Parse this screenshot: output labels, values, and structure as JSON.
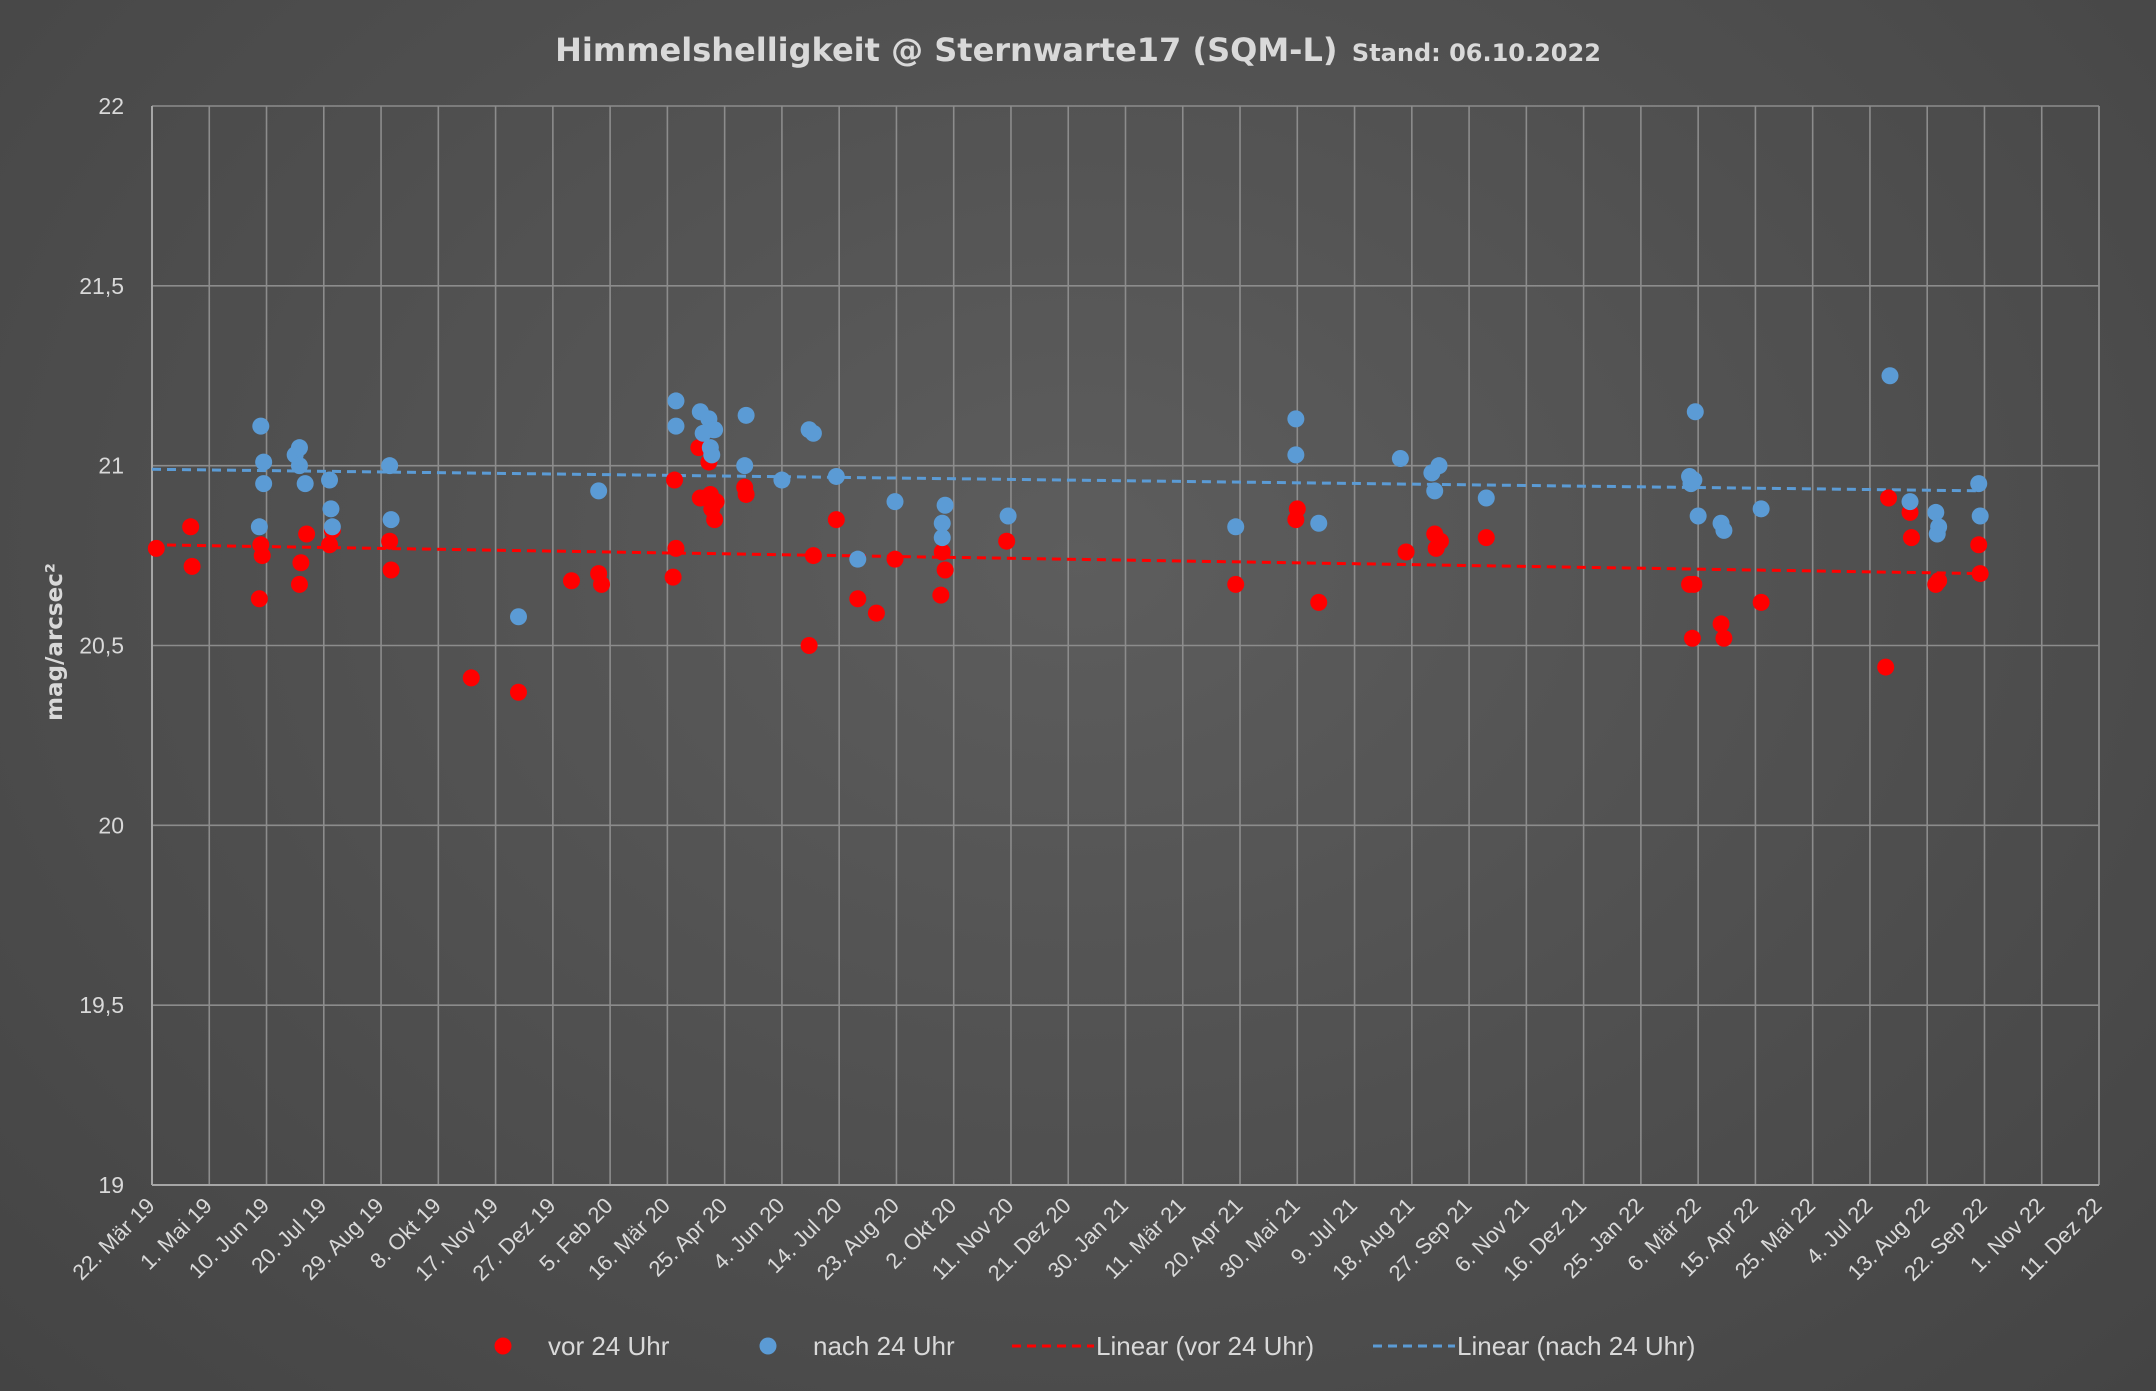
{
  "chart_data": {
    "type": "scatter",
    "title": "Himmelshelligkeit @ Sternwarte17 (SQM-L)",
    "subtitle": "Stand: 06.10.2022",
    "ylabel": "mag/arcsec²",
    "xlabel": "",
    "ylim": [
      19,
      22
    ],
    "xlim": [
      "2019-03-22",
      "2022-12-11"
    ],
    "y_ticks": [
      "19",
      "19,5",
      "20",
      "20,5",
      "21",
      "21,5",
      "22"
    ],
    "x_tick_step_days": 40,
    "x_ticks": [
      "22. Mär 19",
      "1. Mai 19",
      "10. Jun 19",
      "20. Jul 19",
      "29. Aug 19",
      "8. Okt 19",
      "17. Nov 19",
      "27. Dez 19",
      "5. Feb 20",
      "16. Mär 20",
      "25. Apr 20",
      "4. Jun 20",
      "14. Jul 20",
      "23. Aug 20",
      "2. Okt 20",
      "11. Nov 20",
      "21. Dez 20",
      "30. Jan 21",
      "11. Mär 21",
      "20. Apr 21",
      "30. Mai 21",
      "9. Jul 21",
      "18. Aug 21",
      "27. Sep 21",
      "6. Nov 21",
      "16. Dez 21",
      "25. Jan 22",
      "6. Mär 22",
      "15. Apr 22",
      "25. Mai 22",
      "4. Jul 22",
      "13. Aug 22",
      "22. Sep 22",
      "1. Nov 22",
      "11. Dez 22"
    ],
    "grid": true,
    "legend_position": "bottom",
    "series": [
      {
        "name": "vor 24 Uhr",
        "kind": "scatter",
        "color": "#ff0000",
        "points": [
          [
            "2019-03-25",
            20.77
          ],
          [
            "2019-04-18",
            20.83
          ],
          [
            "2019-04-19",
            20.72
          ],
          [
            "2019-06-05",
            20.63
          ],
          [
            "2019-06-06",
            20.78
          ],
          [
            "2019-06-07",
            20.75
          ],
          [
            "2019-07-03",
            20.67
          ],
          [
            "2019-07-04",
            20.73
          ],
          [
            "2019-07-08",
            20.81
          ],
          [
            "2019-07-24",
            20.78
          ],
          [
            "2019-07-26",
            20.82
          ],
          [
            "2019-09-04",
            20.79
          ],
          [
            "2019-09-05",
            20.71
          ],
          [
            "2019-10-31",
            20.41
          ],
          [
            "2019-12-03",
            20.37
          ],
          [
            "2020-01-09",
            20.68
          ],
          [
            "2020-01-28",
            20.7
          ],
          [
            "2020-01-30",
            20.67
          ],
          [
            "2020-03-20",
            20.69
          ],
          [
            "2020-03-21",
            20.96
          ],
          [
            "2020-03-22",
            20.77
          ],
          [
            "2020-04-07",
            21.05
          ],
          [
            "2020-04-08",
            20.91
          ],
          [
            "2020-04-14",
            21.01
          ],
          [
            "2020-04-15",
            20.92
          ],
          [
            "2020-04-16",
            20.88
          ],
          [
            "2020-04-18",
            20.85
          ],
          [
            "2020-04-19",
            20.9
          ],
          [
            "2020-05-09",
            20.94
          ],
          [
            "2020-05-10",
            20.92
          ],
          [
            "2020-06-23",
            20.5
          ],
          [
            "2020-06-26",
            20.75
          ],
          [
            "2020-07-12",
            20.85
          ],
          [
            "2020-07-27",
            20.63
          ],
          [
            "2020-08-09",
            20.59
          ],
          [
            "2020-08-22",
            20.74
          ],
          [
            "2020-09-23",
            20.64
          ],
          [
            "2020-09-24",
            20.76
          ],
          [
            "2020-09-26",
            20.71
          ],
          [
            "2020-11-08",
            20.79
          ],
          [
            "2021-04-17",
            20.67
          ],
          [
            "2021-05-29",
            20.85
          ],
          [
            "2021-05-30",
            20.88
          ],
          [
            "2021-06-14",
            20.62
          ],
          [
            "2021-08-14",
            20.76
          ],
          [
            "2021-09-03",
            20.81
          ],
          [
            "2021-09-04",
            20.77
          ],
          [
            "2021-09-07",
            20.79
          ],
          [
            "2021-10-09",
            20.8
          ],
          [
            "2022-02-28",
            20.67
          ],
          [
            "2022-03-02",
            20.52
          ],
          [
            "2022-03-03",
            20.67
          ],
          [
            "2022-03-22",
            20.56
          ],
          [
            "2022-03-24",
            20.52
          ],
          [
            "2022-04-19",
            20.62
          ],
          [
            "2022-07-15",
            20.44
          ],
          [
            "2022-07-17",
            20.91
          ],
          [
            "2022-08-01",
            20.87
          ],
          [
            "2022-08-02",
            20.8
          ],
          [
            "2022-08-19",
            20.67
          ],
          [
            "2022-08-21",
            20.68
          ],
          [
            "2022-09-18",
            20.78
          ],
          [
            "2022-09-19",
            20.7
          ]
        ]
      },
      {
        "name": "nach 24 Uhr",
        "kind": "scatter",
        "color": "#5b9bd5",
        "points": [
          [
            "2019-06-05",
            20.83
          ],
          [
            "2019-06-06",
            21.11
          ],
          [
            "2019-06-08",
            21.01
          ],
          [
            "2019-06-08",
            20.95
          ],
          [
            "2019-06-30",
            21.03
          ],
          [
            "2019-07-03",
            21.05
          ],
          [
            "2019-07-03",
            21.0
          ],
          [
            "2019-07-07",
            20.95
          ],
          [
            "2019-07-24",
            20.96
          ],
          [
            "2019-07-25",
            20.88
          ],
          [
            "2019-07-26",
            20.83
          ],
          [
            "2019-09-04",
            21.0
          ],
          [
            "2019-09-05",
            20.85
          ],
          [
            "2019-12-03",
            20.58
          ],
          [
            "2020-01-28",
            20.93
          ],
          [
            "2020-03-22",
            21.18
          ],
          [
            "2020-03-22",
            21.11
          ],
          [
            "2020-04-08",
            21.15
          ],
          [
            "2020-04-10",
            21.09
          ],
          [
            "2020-04-14",
            21.13
          ],
          [
            "2020-04-15",
            21.05
          ],
          [
            "2020-04-16",
            21.03
          ],
          [
            "2020-04-17",
            21.1
          ],
          [
            "2020-04-18",
            21.1
          ],
          [
            "2020-05-10",
            21.14
          ],
          [
            "2020-05-09",
            21.0
          ],
          [
            "2020-06-04",
            20.96
          ],
          [
            "2020-06-23",
            21.1
          ],
          [
            "2020-06-26",
            21.09
          ],
          [
            "2020-07-12",
            20.97
          ],
          [
            "2020-07-27",
            20.74
          ],
          [
            "2020-08-22",
            20.9
          ],
          [
            "2020-09-24",
            20.84
          ],
          [
            "2020-09-26",
            20.89
          ],
          [
            "2020-09-24",
            20.8
          ],
          [
            "2020-11-09",
            20.86
          ],
          [
            "2021-04-17",
            20.83
          ],
          [
            "2021-05-29",
            21.13
          ],
          [
            "2021-05-29",
            21.03
          ],
          [
            "2021-06-14",
            20.84
          ],
          [
            "2021-08-10",
            21.02
          ],
          [
            "2021-09-01",
            20.98
          ],
          [
            "2021-09-03",
            20.93
          ],
          [
            "2021-09-06",
            21.0
          ],
          [
            "2021-10-09",
            20.91
          ],
          [
            "2022-02-28",
            20.97
          ],
          [
            "2022-03-01",
            20.95
          ],
          [
            "2022-03-03",
            20.96
          ],
          [
            "2022-03-04",
            21.15
          ],
          [
            "2022-03-06",
            20.86
          ],
          [
            "2022-03-22",
            20.84
          ],
          [
            "2022-03-24",
            20.82
          ],
          [
            "2022-04-19",
            20.88
          ],
          [
            "2022-07-18",
            21.25
          ],
          [
            "2022-08-01",
            20.9
          ],
          [
            "2022-08-19",
            20.87
          ],
          [
            "2022-08-20",
            20.81
          ],
          [
            "2022-08-21",
            20.83
          ],
          [
            "2022-09-18",
            20.95
          ],
          [
            "2022-09-19",
            20.86
          ]
        ]
      },
      {
        "name": "Linear (vor 24 Uhr)",
        "kind": "trendline",
        "color": "#ff0000",
        "points": [
          [
            "2019-03-22",
            20.78
          ],
          [
            "2022-09-19",
            20.7
          ]
        ]
      },
      {
        "name": "Linear (nach 24 Uhr)",
        "kind": "trendline",
        "color": "#5b9bd5",
        "points": [
          [
            "2019-03-22",
            20.99
          ],
          [
            "2022-09-19",
            20.93
          ]
        ]
      }
    ]
  }
}
